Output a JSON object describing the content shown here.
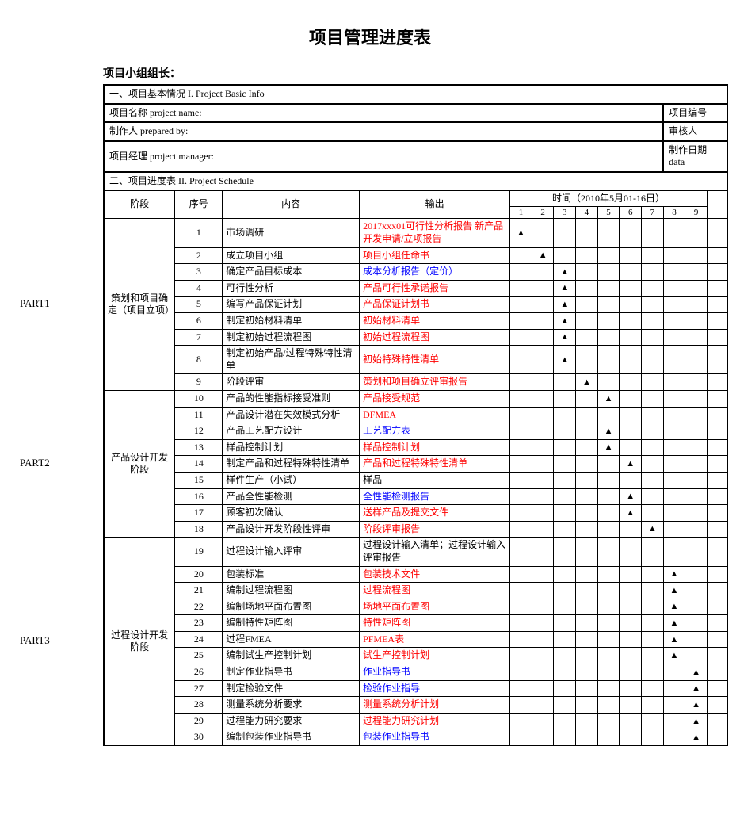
{
  "title": "项目管理进度表",
  "leader_label": "项目小组组长：",
  "section1_title": "一、项目基本情况 I. Project Basic Info",
  "section2_title": "二、项目进度表 II. Project Schedule",
  "info_rows": [
    {
      "left": "项目名称 project name:",
      "right": "项目编号"
    },
    {
      "left": "制作人 prepared by:",
      "right": "审核人"
    },
    {
      "left": "项目经理 project manager:",
      "right": "制作日期 data"
    }
  ],
  "headers": {
    "stage": "阶段",
    "num": "序号",
    "content": "内容",
    "output": "输出",
    "time_title": "时间（2010年5月01-16日）",
    "days": [
      "1",
      "2",
      "3",
      "4",
      "5",
      "6",
      "7",
      "8",
      "9"
    ]
  },
  "parts": [
    {
      "part_label": "PART1",
      "stage_label": "策划和项目确定（项目立项）",
      "rows": [
        {
          "num": "1",
          "content": "市场调研",
          "output": "2017xxx01可行性分析报告 新产品开发申请/立项报告",
          "output_color": "red",
          "mark_day": 1
        },
        {
          "num": "2",
          "content": "成立项目小组",
          "output": "项目小组任命书",
          "output_color": "red",
          "mark_day": 2
        },
        {
          "num": "3",
          "content": "确定产品目标成本",
          "output": "成本分析报告（定价）",
          "output_color": "blue",
          "mark_day": 3
        },
        {
          "num": "4",
          "content": "可行性分析",
          "output": "产品可行性承诺报告",
          "output_color": "red",
          "mark_day": 3
        },
        {
          "num": "5",
          "content": "编写产品保证计划",
          "output": "产品保证计划书",
          "output_color": "red",
          "mark_day": 3
        },
        {
          "num": "6",
          "content": "制定初始材料清单",
          "output": "初始材料清单",
          "output_color": "red",
          "mark_day": 3
        },
        {
          "num": "7",
          "content": "制定初始过程流程图",
          "output": "初始过程流程图",
          "output_color": "red",
          "mark_day": 3
        },
        {
          "num": "8",
          "content": "制定初始产品/过程特殊特性清单",
          "output": "初始特殊特性清单",
          "output_color": "red",
          "mark_day": 3
        },
        {
          "num": "9",
          "content": "阶段评审",
          "output": "策划和项目确立评审报告",
          "output_color": "red",
          "mark_day": 4
        }
      ]
    },
    {
      "part_label": "PART2",
      "stage_label": "产品设计开发阶段",
      "rows": [
        {
          "num": "10",
          "content": "产品的性能指标接受准则",
          "output": "产品接受规范",
          "output_color": "red",
          "mark_day": 5
        },
        {
          "num": "11",
          "content": "产品设计潜在失效模式分析",
          "output": "DFMEA",
          "output_color": "red",
          "mark_day": null
        },
        {
          "num": "12",
          "content": "产品工艺配方设计",
          "output": "工艺配方表",
          "output_color": "blue",
          "mark_day": 5
        },
        {
          "num": "13",
          "content": "样品控制计划",
          "output": "样品控制计划",
          "output_color": "red",
          "mark_day": 5
        },
        {
          "num": "14",
          "content": "制定产品和过程特殊特性清单",
          "output": "产品和过程特殊特性清单",
          "output_color": "red",
          "mark_day": 6
        },
        {
          "num": "15",
          "content": "样件生产（小试）",
          "output": "样品",
          "output_color": "black",
          "mark_day": null
        },
        {
          "num": "16",
          "content": "产品全性能检测",
          "output": "全性能检测报告",
          "output_color": "blue",
          "mark_day": 6
        },
        {
          "num": "17",
          "content": "顾客初次确认",
          "output": "送样产品及提交文件",
          "output_color": "red",
          "mark_day": 6
        },
        {
          "num": "18",
          "content": "产品设计开发阶段性评审",
          "output": "阶段评审报告",
          "output_color": "red",
          "mark_day": 7
        }
      ]
    },
    {
      "part_label": "PART3",
      "stage_label": "过程设计开发阶段",
      "rows": [
        {
          "num": "19",
          "content": "过程设计输入评审",
          "output": "过程设计输入清单；过程设计输入评审报告",
          "output_color": "black",
          "mark_day": null
        },
        {
          "num": "20",
          "content": "包装标准",
          "output": "包装技术文件",
          "output_color": "red",
          "mark_day": 8
        },
        {
          "num": "21",
          "content": "编制过程流程图",
          "output": "过程流程图",
          "output_color": "red",
          "mark_day": 8
        },
        {
          "num": "22",
          "content": "编制场地平面布置图",
          "output": "场地平面布置图",
          "output_color": "red",
          "mark_day": 8
        },
        {
          "num": "23",
          "content": "编制特性矩阵图",
          "output": "特性矩阵图",
          "output_color": "red",
          "mark_day": 8
        },
        {
          "num": "24",
          "content": "过程FMEA",
          "output": "PFMEA表",
          "output_color": "red",
          "mark_day": 8
        },
        {
          "num": "25",
          "content": "编制试生产控制计划",
          "output": "试生产控制计划",
          "output_color": "red",
          "mark_day": 8
        },
        {
          "num": "26",
          "content": "制定作业指导书",
          "output": "作业指导书",
          "output_color": "blue",
          "mark_day": 9
        },
        {
          "num": "27",
          "content": "制定检验文件",
          "output": "检验作业指导",
          "output_color": "blue",
          "mark_day": 9
        },
        {
          "num": "28",
          "content": "测量系统分析要求",
          "output": "测量系统分析计划",
          "output_color": "red",
          "mark_day": 9
        },
        {
          "num": "29",
          "content": "过程能力研究要求",
          "output": "过程能力研究计划",
          "output_color": "red",
          "mark_day": 9
        },
        {
          "num": "30",
          "content": "编制包装作业指导书",
          "output": "包装作业指导书",
          "output_color": "blue",
          "mark_day": 9
        }
      ]
    }
  ],
  "triangle": "▲",
  "colors": {
    "red": "#ff0000",
    "blue": "#0000ff",
    "black": "#000000"
  }
}
